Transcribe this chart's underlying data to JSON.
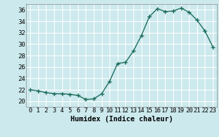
{
  "x": [
    0,
    1,
    2,
    3,
    4,
    5,
    6,
    7,
    8,
    9,
    10,
    11,
    12,
    13,
    14,
    15,
    16,
    17,
    18,
    19,
    20,
    21,
    22,
    23
  ],
  "y": [
    22,
    21.8,
    21.5,
    21.3,
    21.3,
    21.2,
    21.0,
    20.3,
    20.4,
    21.3,
    23.5,
    26.6,
    26.8,
    28.8,
    31.5,
    34.8,
    36.2,
    35.7,
    35.8,
    36.3,
    35.6,
    34.2,
    32.3,
    29.5
  ],
  "line_color": "#1a6b5a",
  "marker": "+",
  "marker_size": 4,
  "background_color": "#cce9ed",
  "grid_color": "#ffffff",
  "xlabel": "Humidex (Indice chaleur)",
  "ylabel": "",
  "title": "",
  "ylim": [
    19,
    37
  ],
  "xlim": [
    -0.5,
    23.5
  ],
  "yticks": [
    20,
    22,
    24,
    26,
    28,
    30,
    32,
    34,
    36
  ],
  "xticks": [
    0,
    1,
    2,
    3,
    4,
    5,
    6,
    7,
    8,
    9,
    10,
    11,
    12,
    13,
    14,
    15,
    16,
    17,
    18,
    19,
    20,
    21,
    22,
    23
  ],
  "xtick_labels": [
    "0",
    "1",
    "2",
    "3",
    "4",
    "5",
    "6",
    "7",
    "8",
    "9",
    "10",
    "11",
    "12",
    "13",
    "14",
    "15",
    "16",
    "17",
    "18",
    "19",
    "20",
    "21",
    "22",
    "23"
  ],
  "tick_fontsize": 6.5,
  "xlabel_fontsize": 7.5
}
